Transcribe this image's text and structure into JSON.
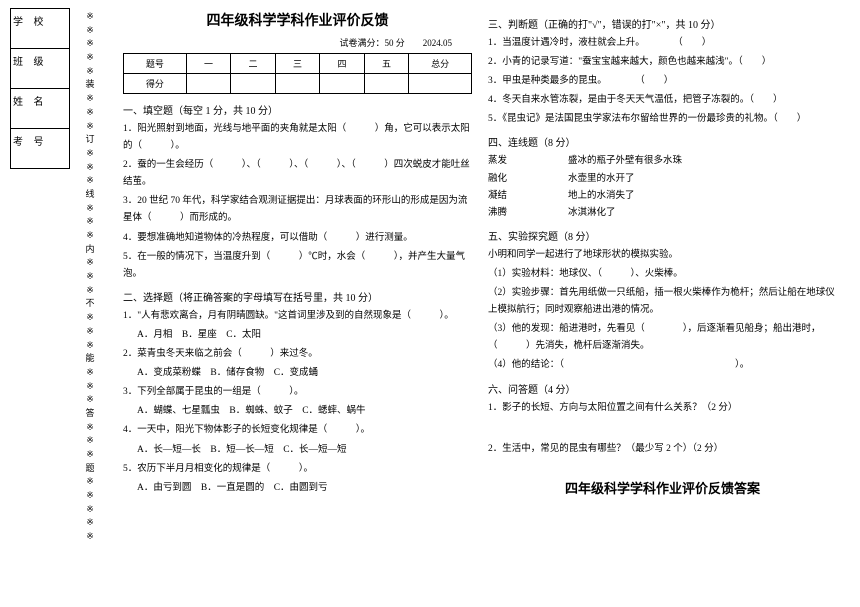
{
  "binding": {
    "labels": [
      "学 校",
      "班 级",
      "姓 名",
      "考  号"
    ],
    "cutline": [
      "※",
      "※",
      "※",
      "※",
      "※",
      "装",
      "※",
      "※",
      "※",
      "订",
      "※",
      "※",
      "※",
      "线",
      "※",
      "※",
      "※",
      "内",
      "※",
      "※",
      "※",
      "不",
      "※",
      "※",
      "※",
      "能",
      "※",
      "※",
      "※",
      "答",
      "※",
      "※",
      "※",
      "题",
      "※",
      "※",
      "※",
      "※",
      "※"
    ]
  },
  "header": {
    "title": "四年级科学学科作业评价反馈",
    "subtitle": "试卷满分：50 分　　2024.05"
  },
  "scoreTable": {
    "row1": [
      "题号",
      "一",
      "二",
      "三",
      "四",
      "五",
      "总分"
    ],
    "row2": [
      "得分",
      "",
      "",
      "",
      "",
      "",
      ""
    ]
  },
  "sec1": {
    "title": "一、填空题（每空 1 分，共 10 分）",
    "q1": "1．阳光照射到地面，光线与地平面的夹角就是太阳（　　　）角，它可以表示太阳的（　　　）。",
    "q2": "2．蚕的一生会经历（　　　）、（　　　）、（　　　）、（　　　）四次蜕皮才能吐丝结茧。",
    "q3": "3．20 世纪 70 年代，科学家结合观测证据提出：月球表面的环形山的形成是因为流星体（　　　）而形成的。",
    "q4": "4．要想准确地知道物体的冷热程度，可以借助（　　　）进行测量。",
    "q5": "5．在一般的情况下，当温度升到（　　　）℃时，水会（　　　），并产生大量气泡。"
  },
  "sec2": {
    "title": "二、选择题（将正确答案的字母填写在括号里，共 10 分）",
    "q1": "1．\"人有悲欢离合，月有阴晴圆缺。\"这首词里涉及到的自然现象是（　　　）。",
    "q1opts": "A．月相　B．星座　C．太阳",
    "q2": "2．菜青虫冬天来临之前会（　　　）来过冬。",
    "q2opts": "A．变成菜粉蝶　B．储存食物　C．变成蛹",
    "q3": "3．下列全部属于昆虫的一组是（　　　）。",
    "q3opts": "A．蝴蝶、七星瓢虫　B．蜘蛛、蚊子　C．蟋蟀、蜗牛",
    "q4": "4．一天中，阳光下物体影子的长短变化规律是（　　　）。",
    "q4opts": "A．长—短—长　B．短—长—短　C．长—短—短",
    "q5": "5．农历下半月月相变化的规律是（　　　）。",
    "q5opts": "A．由亏到圆　B．一直是圆的　C．由圆到亏"
  },
  "sec3": {
    "title": "三、判断题（正确的打\"√\"，错误的打\"×\"，共 10 分）",
    "q1": "1．当温度计遇冷时，液柱就会上升。　　　　（　　）",
    "q2": "2．小青的记录写道：\"蚕宝宝越来越大，颜色也越来越浅\"。（　　）",
    "q3": "3．甲虫是种类最多的昆虫。　　　　（　　）",
    "q4": "4．冬天自来水管冻裂，是由于冬天天气温低，把管子冻裂的。（　　）",
    "q5": "5．《昆虫记》是法国昆虫学家法布尔留给世界的一份最珍贵的礼物。（　　）"
  },
  "sec4": {
    "title": "四、连线题（8 分）",
    "pairs": [
      [
        "蒸发",
        "盛冰的瓶子外壁有很多水珠"
      ],
      [
        "融化",
        "水壶里的水开了"
      ],
      [
        "凝结",
        "地上的水消失了"
      ],
      [
        "沸腾",
        "冰淇淋化了"
      ]
    ]
  },
  "sec5": {
    "title": "五、实验探究题（8 分）",
    "intro": "小明和同学一起进行了地球形状的模拟实验。",
    "q1": "（1）实验材料：地球仪、（　　　）、火柴棒。",
    "q2": "（2）实验步骤：首先用纸做一只纸船，插一根火柴棒作为桅杆；然后让船在地球仪上模拟航行；同时观察船进出港的情况。",
    "q3": "（3）他的发现：船进港时，先看见（　　　　），后逐渐看见船身；船出港时，（　　　）先消失，桅杆后逐渐消失。",
    "q4": "（4）他的结论：（　　　　　　　　　　　　　　　　　　）。"
  },
  "sec6": {
    "title": "六、问答题（4 分）",
    "q1": "1．影子的长短、方向与太阳位置之间有什么关系？（2 分）",
    "q2": "2．生活中，常见的昆虫有哪些？（最少写 2 个）（2 分）"
  },
  "answerTitle": "四年级科学学科作业评价反馈答案"
}
